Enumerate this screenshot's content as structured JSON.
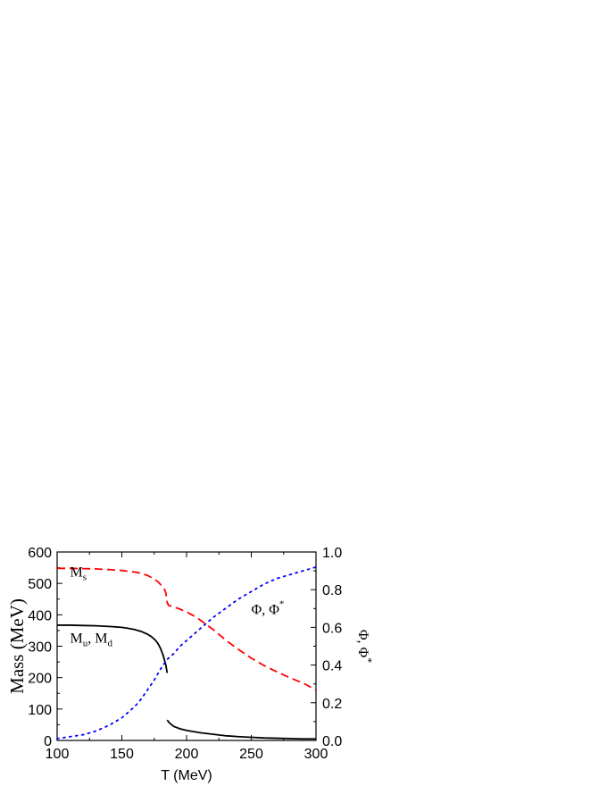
{
  "chart_data": {
    "type": "line",
    "xlabel": "T (MeV)",
    "ylabel_left": "Mass (MeV)",
    "ylabel_right": "Φ, Φ*",
    "xlim": [
      100,
      300
    ],
    "ylim_left": [
      0,
      600
    ],
    "ylim_right": [
      0,
      1.0
    ],
    "x_ticks": [
      "100",
      "150",
      "200",
      "250",
      "300"
    ],
    "y_left_ticks": [
      "0",
      "100",
      "200",
      "300",
      "400",
      "500",
      "600"
    ],
    "y_right_ticks": [
      "0.0",
      "0.2",
      "0.4",
      "0.6",
      "0.8",
      "1.0"
    ],
    "grid": false,
    "series": [
      {
        "style": "solid",
        "color": "#000000",
        "axis": "left",
        "segments": [
          {
            "x": [
              100,
              110,
              120,
              130,
              140,
              150,
              155,
              160,
              165,
              170,
              173,
              176,
              178,
              180,
              182,
              183,
              184,
              185
            ],
            "y": [
              367,
              367,
              366,
              365,
              363,
              360,
              357,
              353,
              347,
              338,
              330,
              319,
              308,
              292,
              270,
              255,
              240,
              215
            ]
          },
          {
            "x": [
              185,
              187,
              190,
              195,
              200,
              210,
              220,
              230,
              240,
              250,
              260,
              270,
              280,
              290,
              300
            ],
            "y": [
              65,
              55,
              45,
              37,
              32,
              25,
              20,
              15,
              12,
              10,
              8,
              7,
              6,
              5,
              5
            ]
          }
        ]
      },
      {
        "style": "dashed",
        "color": "#ff0000",
        "axis": "left",
        "segments": [
          {
            "x": [
              100,
              110,
              120,
              130,
              140,
              150,
              160,
              165,
              170,
              175,
              178,
              180,
              182,
              183,
              184,
              185,
              186,
              190,
              195,
              200,
              205,
              210,
              215,
              220,
              225,
              230,
              240,
              250,
              260,
              270,
              280,
              290,
              300
            ],
            "y": [
              548,
              548,
              547,
              546,
              544,
              541,
              536,
              532,
              525,
              514,
              505,
              496,
              487,
              480,
              470,
              440,
              430,
              425,
              418,
              409,
              398,
              385,
              370,
              355,
              338,
              320,
              290,
              262,
              238,
              218,
              199,
              183,
              160
            ]
          }
        ]
      },
      {
        "style": "dotted",
        "color": "#0000ff",
        "axis": "right",
        "segments": [
          {
            "x": [
              100,
              110,
              120,
              130,
              140,
              150,
              155,
              160,
              165,
              170,
              175,
              180,
              185,
              190,
              195,
              200,
              205,
              210,
              215,
              220,
              230,
              240,
              250,
              260,
              270,
              280,
              290,
              300
            ],
            "y": [
              0.01,
              0.02,
              0.03,
              0.05,
              0.08,
              0.12,
              0.15,
              0.18,
              0.22,
              0.27,
              0.32,
              0.38,
              0.43,
              0.46,
              0.5,
              0.53,
              0.56,
              0.59,
              0.62,
              0.65,
              0.7,
              0.75,
              0.79,
              0.83,
              0.86,
              0.88,
              0.9,
              0.92
            ]
          }
        ]
      }
    ],
    "annotations": [
      {
        "base": "M",
        "sub": "s",
        "x": 110,
        "y": 522
      },
      {
        "base": "M",
        "sub": "u",
        "rest": ", M",
        "sub2": "d",
        "x": 110,
        "y": 312
      },
      {
        "base": "Φ, Φ",
        "sup": "*",
        "x": 250,
        "y": 0.67
      }
    ]
  }
}
